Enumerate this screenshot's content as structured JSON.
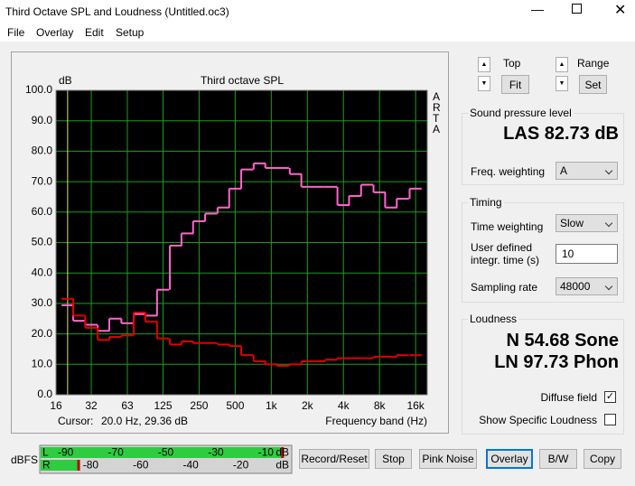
{
  "window": {
    "title": "Third Octave SPL and Loudness (Untitled.oc3)"
  },
  "menu": [
    "File",
    "Overlay",
    "Edit",
    "Setup"
  ],
  "plot": {
    "type": "line",
    "title": "Third octave SPL",
    "y_label": "dB",
    "side_label": "ARTA",
    "x_label": "Frequency band (Hz)",
    "cursor_label": "Cursor:",
    "cursor_value": "20.0 Hz, 29.36 dB",
    "x_scale": "log",
    "xlim": [
      16,
      20000
    ],
    "xticks": [
      {
        "value": 16,
        "label": "16"
      },
      {
        "value": 31.5,
        "label": "32"
      },
      {
        "value": 63,
        "label": "63"
      },
      {
        "value": 125,
        "label": "125"
      },
      {
        "value": 250,
        "label": "250"
      },
      {
        "value": 500,
        "label": "500"
      },
      {
        "value": 1000,
        "label": "1k"
      },
      {
        "value": 2000,
        "label": "2k"
      },
      {
        "value": 4000,
        "label": "4k"
      },
      {
        "value": 8000,
        "label": "8k"
      },
      {
        "value": 16000,
        "label": "16k"
      }
    ],
    "ylim": [
      0,
      100
    ],
    "yticks": [
      {
        "value": 0,
        "label": "0.0"
      },
      {
        "value": 10,
        "label": "10.0"
      },
      {
        "value": 20,
        "label": "20.0"
      },
      {
        "value": 30,
        "label": "30.0"
      },
      {
        "value": 40,
        "label": "40.0"
      },
      {
        "value": 50,
        "label": "50.0"
      },
      {
        "value": 60,
        "label": "60.0"
      },
      {
        "value": 70,
        "label": "70.0"
      },
      {
        "value": 80,
        "label": "80.0"
      },
      {
        "value": 90,
        "label": "90.0"
      },
      {
        "value": 100,
        "label": "100.0"
      }
    ],
    "grid": true,
    "x": [
      20,
      25,
      31.5,
      40,
      50,
      63,
      80,
      100,
      125,
      160,
      200,
      250,
      315,
      400,
      500,
      630,
      800,
      1000,
      1250,
      1600,
      2000,
      2500,
      3150,
      4000,
      5000,
      6300,
      8000,
      10000,
      12500,
      16000
    ],
    "series": [
      {
        "color": "#ff66cc",
        "values": [
          29.4,
          24.3,
          23,
          21,
          25,
          23.5,
          26.5,
          26,
          34.5,
          49,
          53,
          57,
          59.5,
          61.5,
          67.7,
          74,
          76,
          74.5,
          74.5,
          72.5,
          68.3,
          68.3,
          68.3,
          62.3,
          65.3,
          69,
          66.5,
          61.5,
          64.4,
          67.7
        ]
      },
      {
        "color": "#e00000",
        "values": [
          31.5,
          26,
          22,
          18,
          19,
          19.5,
          27,
          24,
          18.5,
          16.5,
          17.5,
          17,
          17,
          16.5,
          16,
          13,
          11,
          10,
          9.5,
          10,
          11,
          11,
          11.5,
          12,
          12,
          12,
          12.5,
          12.5,
          13,
          13
        ]
      }
    ]
  },
  "controls": {
    "top": "Top",
    "fit": "Fit",
    "range": "Range",
    "set": "Set"
  },
  "spl": {
    "title": "Sound pressure level",
    "reading": "LAS 82.73 dB",
    "weighting_label": "Freq. weighting",
    "weighting": "A"
  },
  "timing": {
    "title": "Timing",
    "time_weighting_label": "Time weighting",
    "time_weighting": "Slow",
    "integr_label": "User defined integr. time (s)",
    "integr_time": "10",
    "rate_label": "Sampling rate",
    "rate": "48000"
  },
  "loudness": {
    "title": "Loudness",
    "n": "N 54.68 Sone",
    "ln": "LN 97.73 Phon",
    "diffuse": "Diffuse field",
    "specific": "Show Specific Loudness"
  },
  "meter": {
    "label": "dBFS",
    "unit": "dB",
    "lim": [
      -100,
      0
    ],
    "l_ticks": [
      -90,
      -70,
      -50,
      -30,
      -10
    ],
    "r_ticks": [
      -80,
      -60,
      -40,
      -20
    ],
    "channels": [
      {
        "name": "L",
        "level": -3.5
      },
      {
        "name": "R",
        "level": -85
      }
    ]
  },
  "buttons": [
    "Record/Reset",
    "Stop",
    "Pink Noise",
    "Overlay",
    "B/W",
    "Copy"
  ]
}
